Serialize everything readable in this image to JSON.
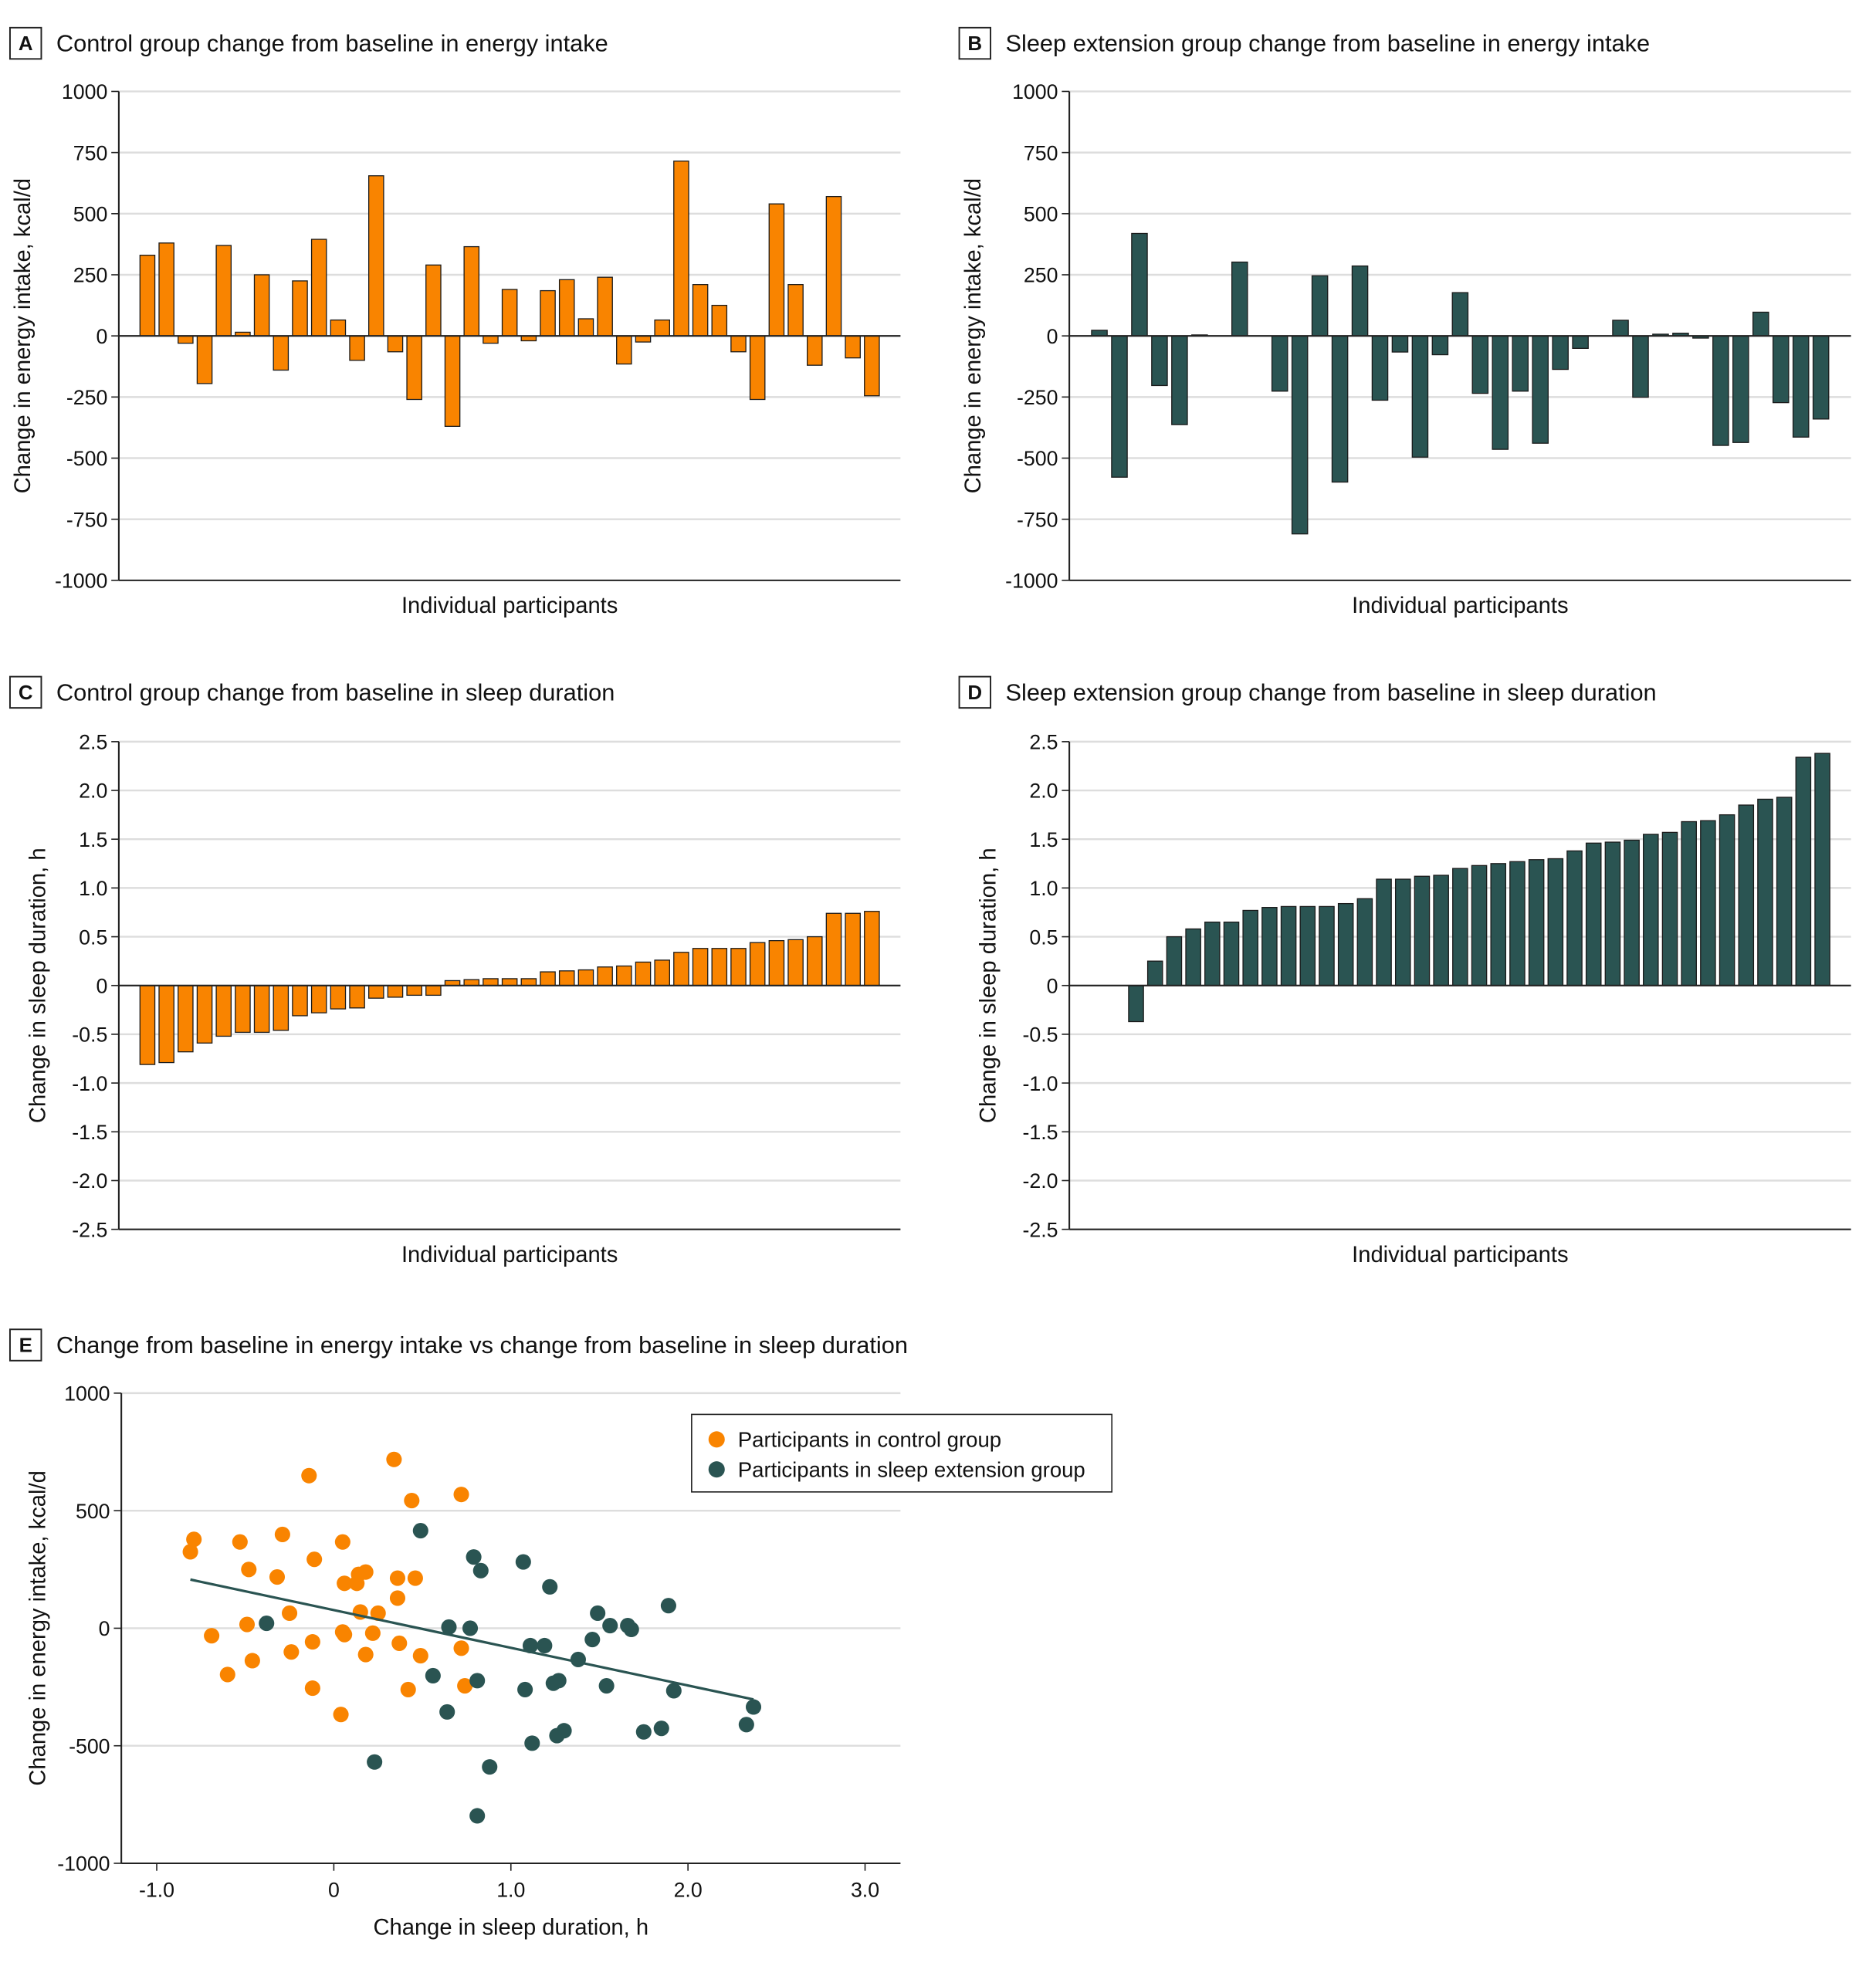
{
  "colors": {
    "control": "#F98400",
    "extension": "#2A5452",
    "grid": "#dddddd",
    "axis": "#222222"
  },
  "chart_data": [
    {
      "panel": "A",
      "type": "bar",
      "title": "Control group change from baseline in energy intake",
      "xlabel": "Individual participants",
      "ylabel": "Change in energy intake, kcal/d",
      "ylim": [
        -1000,
        1000
      ],
      "yticks": [
        1000,
        750,
        500,
        250,
        0,
        -250,
        -500,
        -750,
        -1000
      ],
      "ytick_labels": [
        "1000",
        "750",
        "500",
        "250",
        "0",
        "-250",
        "-500",
        "-750",
        "-1000"
      ],
      "grid": true,
      "series_color": "control",
      "values": [
        330,
        380,
        -30,
        -195,
        370,
        15,
        250,
        -140,
        225,
        395,
        65,
        -100,
        655,
        -65,
        -260,
        290,
        -370,
        365,
        -30,
        190,
        -20,
        185,
        230,
        70,
        240,
        -115,
        -25,
        65,
        715,
        210,
        125,
        -65,
        -260,
        540,
        210,
        -120,
        570,
        -90,
        -245
      ]
    },
    {
      "panel": "B",
      "type": "bar",
      "title": "Sleep extension group change from baseline in energy intake",
      "xlabel": "Individual participants",
      "ylabel": "Change in energy intake, kcal/d",
      "ylim": [
        -1000,
        1000
      ],
      "yticks": [
        1000,
        750,
        500,
        250,
        0,
        -250,
        -500,
        -750,
        -1000
      ],
      "ytick_labels": [
        "1000",
        "750",
        "500",
        "250",
        "0",
        "-250",
        "-500",
        "-750",
        "-1000"
      ],
      "grid": true,
      "series_color": "extension",
      "values": [
        23,
        -578,
        419,
        -203,
        -363,
        4,
        null,
        302,
        null,
        -226,
        -810,
        246,
        -598,
        286,
        -263,
        -66,
        -496,
        -77,
        177,
        -235,
        -464,
        -226,
        -439,
        -137,
        -51,
        null,
        64,
        -251,
        7,
        11,
        -9,
        -448,
        -436,
        97,
        -273,
        -414,
        -340
      ]
    },
    {
      "panel": "C",
      "type": "bar",
      "title": "Control group change from baseline in sleep duration",
      "xlabel": "Individual participants",
      "ylabel": "Change in sleep duration, h",
      "ylim": [
        -2.5,
        2.5
      ],
      "yticks": [
        2.5,
        2.0,
        1.5,
        1.0,
        0.5,
        0,
        -0.5,
        -1.0,
        -1.5,
        -2.0,
        -2.5
      ],
      "ytick_labels": [
        "2.5",
        "2.0",
        "1.5",
        "1.0",
        "0.5",
        "0",
        "-0.5",
        "-1.0",
        "-1.5",
        "-2.0",
        "-2.5"
      ],
      "grid": true,
      "series_color": "control",
      "values": [
        -0.81,
        -0.79,
        -0.68,
        -0.59,
        -0.52,
        -0.48,
        -0.48,
        -0.46,
        -0.31,
        -0.28,
        -0.24,
        -0.23,
        -0.13,
        -0.12,
        -0.1,
        -0.1,
        0.05,
        0.06,
        0.07,
        0.07,
        0.07,
        0.14,
        0.15,
        0.16,
        0.19,
        0.2,
        0.24,
        0.26,
        0.34,
        0.38,
        0.38,
        0.38,
        0.44,
        0.46,
        0.47,
        0.5,
        0.74,
        0.74,
        0.76
      ]
    },
    {
      "panel": "D",
      "type": "bar",
      "title": "Sleep extension group change from baseline in sleep duration",
      "xlabel": "Individual participants",
      "ylabel": "Change in sleep duration, h",
      "ylim": [
        -2.5,
        2.5
      ],
      "yticks": [
        2.5,
        2.0,
        1.5,
        1.0,
        0.5,
        0,
        -0.5,
        -1.0,
        -1.5,
        -2.0,
        -2.5
      ],
      "ytick_labels": [
        "2.5",
        "2.0",
        "1.5",
        "1.0",
        "0.5",
        "0",
        "-0.5",
        "-1.0",
        "-1.5",
        "-2.0",
        "-2.5"
      ],
      "grid": true,
      "series_color": "extension",
      "values": [
        null,
        null,
        -0.37,
        0.25,
        0.5,
        0.58,
        0.65,
        0.65,
        0.77,
        0.8,
        0.81,
        0.81,
        0.81,
        0.84,
        0.89,
        1.09,
        1.09,
        1.12,
        1.13,
        1.2,
        1.23,
        1.25,
        1.27,
        1.29,
        1.3,
        1.38,
        1.46,
        1.47,
        1.49,
        1.55,
        1.57,
        1.68,
        1.69,
        1.75,
        1.85,
        1.91,
        1.93,
        2.34,
        2.38
      ]
    },
    {
      "panel": "E",
      "type": "scatter",
      "title": "Change from baseline in energy intake vs change from baseline in sleep duration",
      "xlabel": "Change in sleep duration, h",
      "ylabel": "Change in energy intake, kcal/d",
      "xlim": [
        -1.2,
        3.2
      ],
      "ylim": [
        -1000,
        1000
      ],
      "xticks": [
        -1.0,
        0,
        1.0,
        2.0,
        3.0
      ],
      "xtick_labels": [
        "-1.0",
        "0",
        "1.0",
        "2.0",
        "3.0"
      ],
      "yticks": [
        1000,
        500,
        0,
        -500,
        -1000
      ],
      "ytick_labels": [
        "1000",
        "500",
        "0",
        "-500",
        "-1000"
      ],
      "grid": true,
      "legend_position": "top-right",
      "series": [
        {
          "name": "Participants in control group",
          "color": "control",
          "points": [
            [
              -0.81,
              325
            ],
            [
              -0.79,
              378
            ],
            [
              -0.69,
              -32
            ],
            [
              -0.6,
              -197
            ],
            [
              -0.53,
              367
            ],
            [
              -0.49,
              16
            ],
            [
              -0.48,
              250
            ],
            [
              -0.46,
              -138
            ],
            [
              -0.32,
              218
            ],
            [
              -0.29,
              399
            ],
            [
              -0.25,
              64
            ],
            [
              -0.24,
              -101
            ],
            [
              -0.14,
              649
            ],
            [
              -0.12,
              -58
            ],
            [
              -0.12,
              -255
            ],
            [
              -0.11,
              293
            ],
            [
              0.04,
              -367
            ],
            [
              0.05,
              367
            ],
            [
              0.05,
              -16
            ],
            [
              0.06,
              191
            ],
            [
              0.06,
              -27
            ],
            [
              0.13,
              191
            ],
            [
              0.14,
              229
            ],
            [
              0.15,
              69
            ],
            [
              0.18,
              239
            ],
            [
              0.18,
              -112
            ],
            [
              0.22,
              -21
            ],
            [
              0.25,
              64
            ],
            [
              0.34,
              718
            ],
            [
              0.36,
              213
            ],
            [
              0.36,
              128
            ],
            [
              0.37,
              -64
            ],
            [
              0.42,
              -261
            ],
            [
              0.44,
              543
            ],
            [
              0.46,
              213
            ],
            [
              0.49,
              -117
            ],
            [
              0.72,
              569
            ],
            [
              0.72,
              -85
            ],
            [
              0.74,
              -245
            ]
          ]
        },
        {
          "name": "Participants in sleep extension group",
          "color": "extension",
          "points": [
            [
              -0.38,
              21
            ],
            [
              0.23,
              -569
            ],
            [
              0.49,
              415
            ],
            [
              0.56,
              -202
            ],
            [
              0.64,
              -356
            ],
            [
              0.65,
              5
            ],
            [
              0.77,
              0
            ],
            [
              0.79,
              303
            ],
            [
              0.81,
              -223
            ],
            [
              0.81,
              -798
            ],
            [
              0.83,
              245
            ],
            [
              0.88,
              -590
            ],
            [
              1.07,
              282
            ],
            [
              1.08,
              -261
            ],
            [
              1.11,
              -74
            ],
            [
              1.12,
              -489
            ],
            [
              1.19,
              -74
            ],
            [
              1.22,
              176
            ],
            [
              1.24,
              -234
            ],
            [
              1.26,
              -457
            ],
            [
              1.27,
              -223
            ],
            [
              1.3,
              -436
            ],
            [
              1.38,
              -133
            ],
            [
              1.46,
              -48
            ],
            [
              1.49,
              64
            ],
            [
              1.54,
              -245
            ],
            [
              1.56,
              11
            ],
            [
              1.66,
              11
            ],
            [
              1.68,
              -5
            ],
            [
              1.75,
              -441
            ],
            [
              1.85,
              -426
            ],
            [
              1.89,
              96
            ],
            [
              1.92,
              -266
            ],
            [
              2.33,
              -410
            ],
            [
              2.37,
              -335
            ]
          ]
        }
      ],
      "regression_line": {
        "color": "extension",
        "from": [
          -0.81,
          207
        ],
        "to": [
          2.37,
          -303
        ]
      }
    }
  ]
}
